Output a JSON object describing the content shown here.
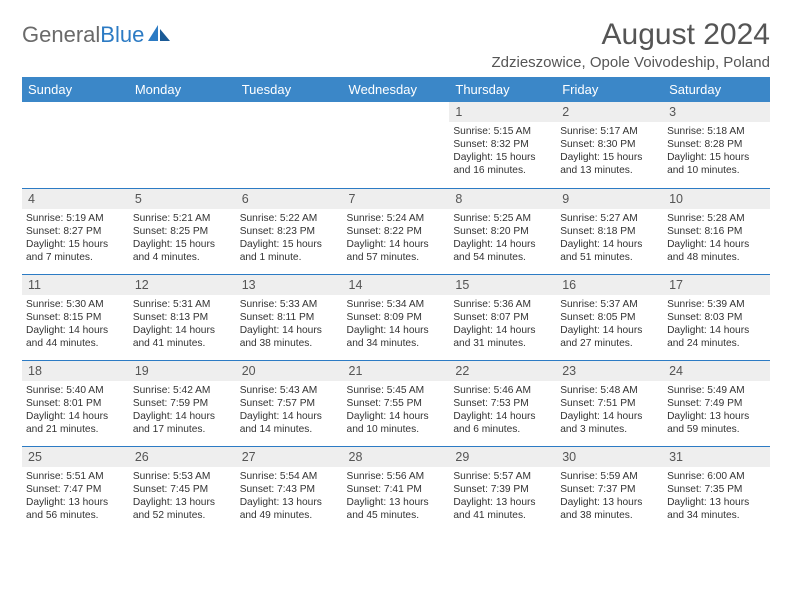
{
  "brand": {
    "part1": "General",
    "part2": "Blue"
  },
  "title": {
    "month": "August 2024",
    "location": "Zdzieszowice, Opole Voivodeship, Poland"
  },
  "colors": {
    "header_bg": "#3b87c8",
    "header_text": "#ffffff",
    "row_divider": "#2c7bc4",
    "daynum_bg": "#eeeeee",
    "text": "#333333",
    "title_text": "#555555",
    "logo_gray": "#6a6a6a",
    "logo_blue": "#2c7bc4"
  },
  "weekdays": [
    "Sunday",
    "Monday",
    "Tuesday",
    "Wednesday",
    "Thursday",
    "Friday",
    "Saturday"
  ],
  "weeks": [
    [
      null,
      null,
      null,
      null,
      {
        "d": "1",
        "sr": "5:15 AM",
        "ss": "8:32 PM",
        "dl": "15 hours and 16 minutes."
      },
      {
        "d": "2",
        "sr": "5:17 AM",
        "ss": "8:30 PM",
        "dl": "15 hours and 13 minutes."
      },
      {
        "d": "3",
        "sr": "5:18 AM",
        "ss": "8:28 PM",
        "dl": "15 hours and 10 minutes."
      }
    ],
    [
      {
        "d": "4",
        "sr": "5:19 AM",
        "ss": "8:27 PM",
        "dl": "15 hours and 7 minutes."
      },
      {
        "d": "5",
        "sr": "5:21 AM",
        "ss": "8:25 PM",
        "dl": "15 hours and 4 minutes."
      },
      {
        "d": "6",
        "sr": "5:22 AM",
        "ss": "8:23 PM",
        "dl": "15 hours and 1 minute."
      },
      {
        "d": "7",
        "sr": "5:24 AM",
        "ss": "8:22 PM",
        "dl": "14 hours and 57 minutes."
      },
      {
        "d": "8",
        "sr": "5:25 AM",
        "ss": "8:20 PM",
        "dl": "14 hours and 54 minutes."
      },
      {
        "d": "9",
        "sr": "5:27 AM",
        "ss": "8:18 PM",
        "dl": "14 hours and 51 minutes."
      },
      {
        "d": "10",
        "sr": "5:28 AM",
        "ss": "8:16 PM",
        "dl": "14 hours and 48 minutes."
      }
    ],
    [
      {
        "d": "11",
        "sr": "5:30 AM",
        "ss": "8:15 PM",
        "dl": "14 hours and 44 minutes."
      },
      {
        "d": "12",
        "sr": "5:31 AM",
        "ss": "8:13 PM",
        "dl": "14 hours and 41 minutes."
      },
      {
        "d": "13",
        "sr": "5:33 AM",
        "ss": "8:11 PM",
        "dl": "14 hours and 38 minutes."
      },
      {
        "d": "14",
        "sr": "5:34 AM",
        "ss": "8:09 PM",
        "dl": "14 hours and 34 minutes."
      },
      {
        "d": "15",
        "sr": "5:36 AM",
        "ss": "8:07 PM",
        "dl": "14 hours and 31 minutes."
      },
      {
        "d": "16",
        "sr": "5:37 AM",
        "ss": "8:05 PM",
        "dl": "14 hours and 27 minutes."
      },
      {
        "d": "17",
        "sr": "5:39 AM",
        "ss": "8:03 PM",
        "dl": "14 hours and 24 minutes."
      }
    ],
    [
      {
        "d": "18",
        "sr": "5:40 AM",
        "ss": "8:01 PM",
        "dl": "14 hours and 21 minutes."
      },
      {
        "d": "19",
        "sr": "5:42 AM",
        "ss": "7:59 PM",
        "dl": "14 hours and 17 minutes."
      },
      {
        "d": "20",
        "sr": "5:43 AM",
        "ss": "7:57 PM",
        "dl": "14 hours and 14 minutes."
      },
      {
        "d": "21",
        "sr": "5:45 AM",
        "ss": "7:55 PM",
        "dl": "14 hours and 10 minutes."
      },
      {
        "d": "22",
        "sr": "5:46 AM",
        "ss": "7:53 PM",
        "dl": "14 hours and 6 minutes."
      },
      {
        "d": "23",
        "sr": "5:48 AM",
        "ss": "7:51 PM",
        "dl": "14 hours and 3 minutes."
      },
      {
        "d": "24",
        "sr": "5:49 AM",
        "ss": "7:49 PM",
        "dl": "13 hours and 59 minutes."
      }
    ],
    [
      {
        "d": "25",
        "sr": "5:51 AM",
        "ss": "7:47 PM",
        "dl": "13 hours and 56 minutes."
      },
      {
        "d": "26",
        "sr": "5:53 AM",
        "ss": "7:45 PM",
        "dl": "13 hours and 52 minutes."
      },
      {
        "d": "27",
        "sr": "5:54 AM",
        "ss": "7:43 PM",
        "dl": "13 hours and 49 minutes."
      },
      {
        "d": "28",
        "sr": "5:56 AM",
        "ss": "7:41 PM",
        "dl": "13 hours and 45 minutes."
      },
      {
        "d": "29",
        "sr": "5:57 AM",
        "ss": "7:39 PM",
        "dl": "13 hours and 41 minutes."
      },
      {
        "d": "30",
        "sr": "5:59 AM",
        "ss": "7:37 PM",
        "dl": "13 hours and 38 minutes."
      },
      {
        "d": "31",
        "sr": "6:00 AM",
        "ss": "7:35 PM",
        "dl": "13 hours and 34 minutes."
      }
    ]
  ],
  "labels": {
    "sunrise": "Sunrise:",
    "sunset": "Sunset:",
    "daylight": "Daylight:"
  }
}
